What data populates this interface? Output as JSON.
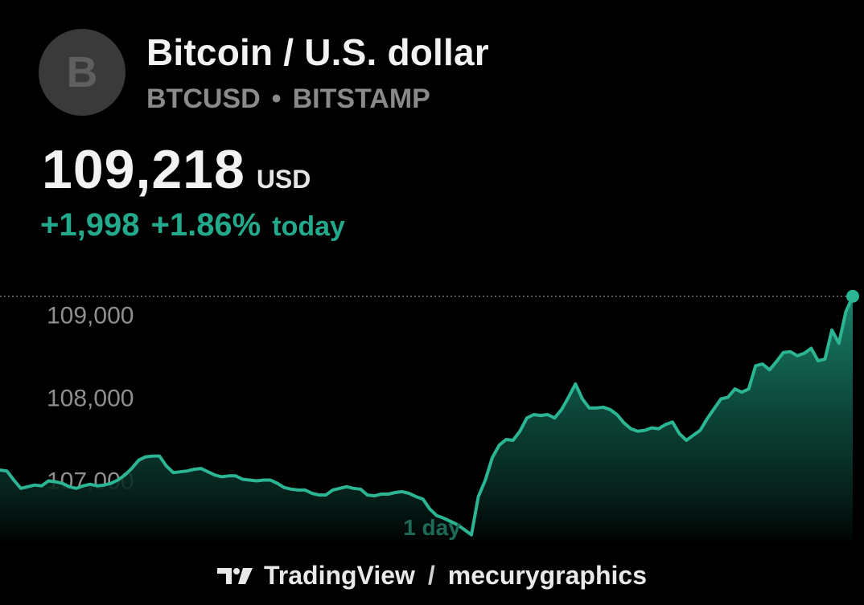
{
  "header": {
    "avatar_letter": "B",
    "title": "Bitcoin / U.S. dollar",
    "ticker": "BTCUSD",
    "separator": "•",
    "exchange": "BITSTAMP"
  },
  "quote": {
    "price": "109,218",
    "currency": "USD",
    "change_abs": "+1,998",
    "change_pct": "+1.86%",
    "change_label": "today"
  },
  "colors": {
    "accent": "#23a98c",
    "line": "#2bb593",
    "background": "#000000"
  },
  "chart_data": {
    "type": "area",
    "period_label": "1 day",
    "y_ticks": [
      "109,000",
      "108,000",
      "107,000"
    ],
    "y_tick_values": [
      109000,
      108000,
      107000
    ],
    "ylim": [
      106200,
      109400
    ],
    "last_value": 109218,
    "x": [
      0,
      1,
      2,
      3,
      4,
      5,
      6,
      7,
      8,
      9,
      10,
      11,
      12,
      13,
      14,
      15,
      16,
      17,
      18,
      19,
      20,
      21,
      22,
      23,
      24,
      25,
      26,
      27,
      28,
      29,
      30,
      31,
      32,
      33,
      34,
      35,
      36,
      37,
      38,
      39,
      40,
      41,
      42,
      43,
      44,
      45,
      46,
      47,
      48,
      49,
      50,
      51,
      52,
      53,
      54,
      55,
      56,
      57,
      58,
      59,
      60,
      61,
      62,
      63,
      64,
      65,
      66,
      67,
      68,
      69,
      70,
      71,
      72,
      73,
      74,
      75,
      76,
      77,
      78,
      79,
      80,
      81,
      82,
      83,
      84,
      85,
      86,
      87,
      88,
      89,
      90,
      91,
      92,
      93,
      94,
      95,
      96,
      97,
      98,
      99,
      100,
      101,
      102,
      103,
      104,
      105,
      106,
      107,
      108,
      109,
      110,
      111,
      112,
      113,
      114,
      115,
      116,
      117,
      118,
      119,
      120,
      121,
      122,
      123
    ],
    "values": [
      107120,
      107110,
      107000,
      106900,
      106920,
      106940,
      106930,
      106990,
      106980,
      106960,
      106920,
      106900,
      106930,
      106950,
      106930,
      106940,
      106960,
      107000,
      107060,
      107140,
      107240,
      107280,
      107290,
      107290,
      107170,
      107090,
      107100,
      107110,
      107130,
      107140,
      107100,
      107060,
      107040,
      107050,
      107050,
      107010,
      107000,
      106990,
      107000,
      107000,
      106960,
      106910,
      106890,
      106880,
      106880,
      106840,
      106820,
      106820,
      106880,
      106900,
      106920,
      106900,
      106890,
      106820,
      106810,
      106830,
      106830,
      106850,
      106860,
      106840,
      106800,
      106770,
      106650,
      106570,
      106540,
      106500,
      106460,
      106400,
      106340,
      106800,
      107000,
      107270,
      107420,
      107490,
      107480,
      107590,
      107750,
      107790,
      107780,
      107790,
      107750,
      107850,
      108000,
      108160,
      107980,
      107870,
      107870,
      107880,
      107850,
      107790,
      107690,
      107620,
      107590,
      107600,
      107630,
      107620,
      107670,
      107700,
      107560,
      107480,
      107540,
      107600,
      107740,
      107860,
      107980,
      108000,
      108100,
      108060,
      108100,
      108380,
      108400,
      108330,
      108430,
      108540,
      108550,
      108500,
      108530,
      108590,
      108440,
      108460,
      108810,
      108650,
      109030,
      109218
    ]
  },
  "footer": {
    "brand": "TradingView",
    "separator": "/",
    "author": "mecurygraphics"
  }
}
